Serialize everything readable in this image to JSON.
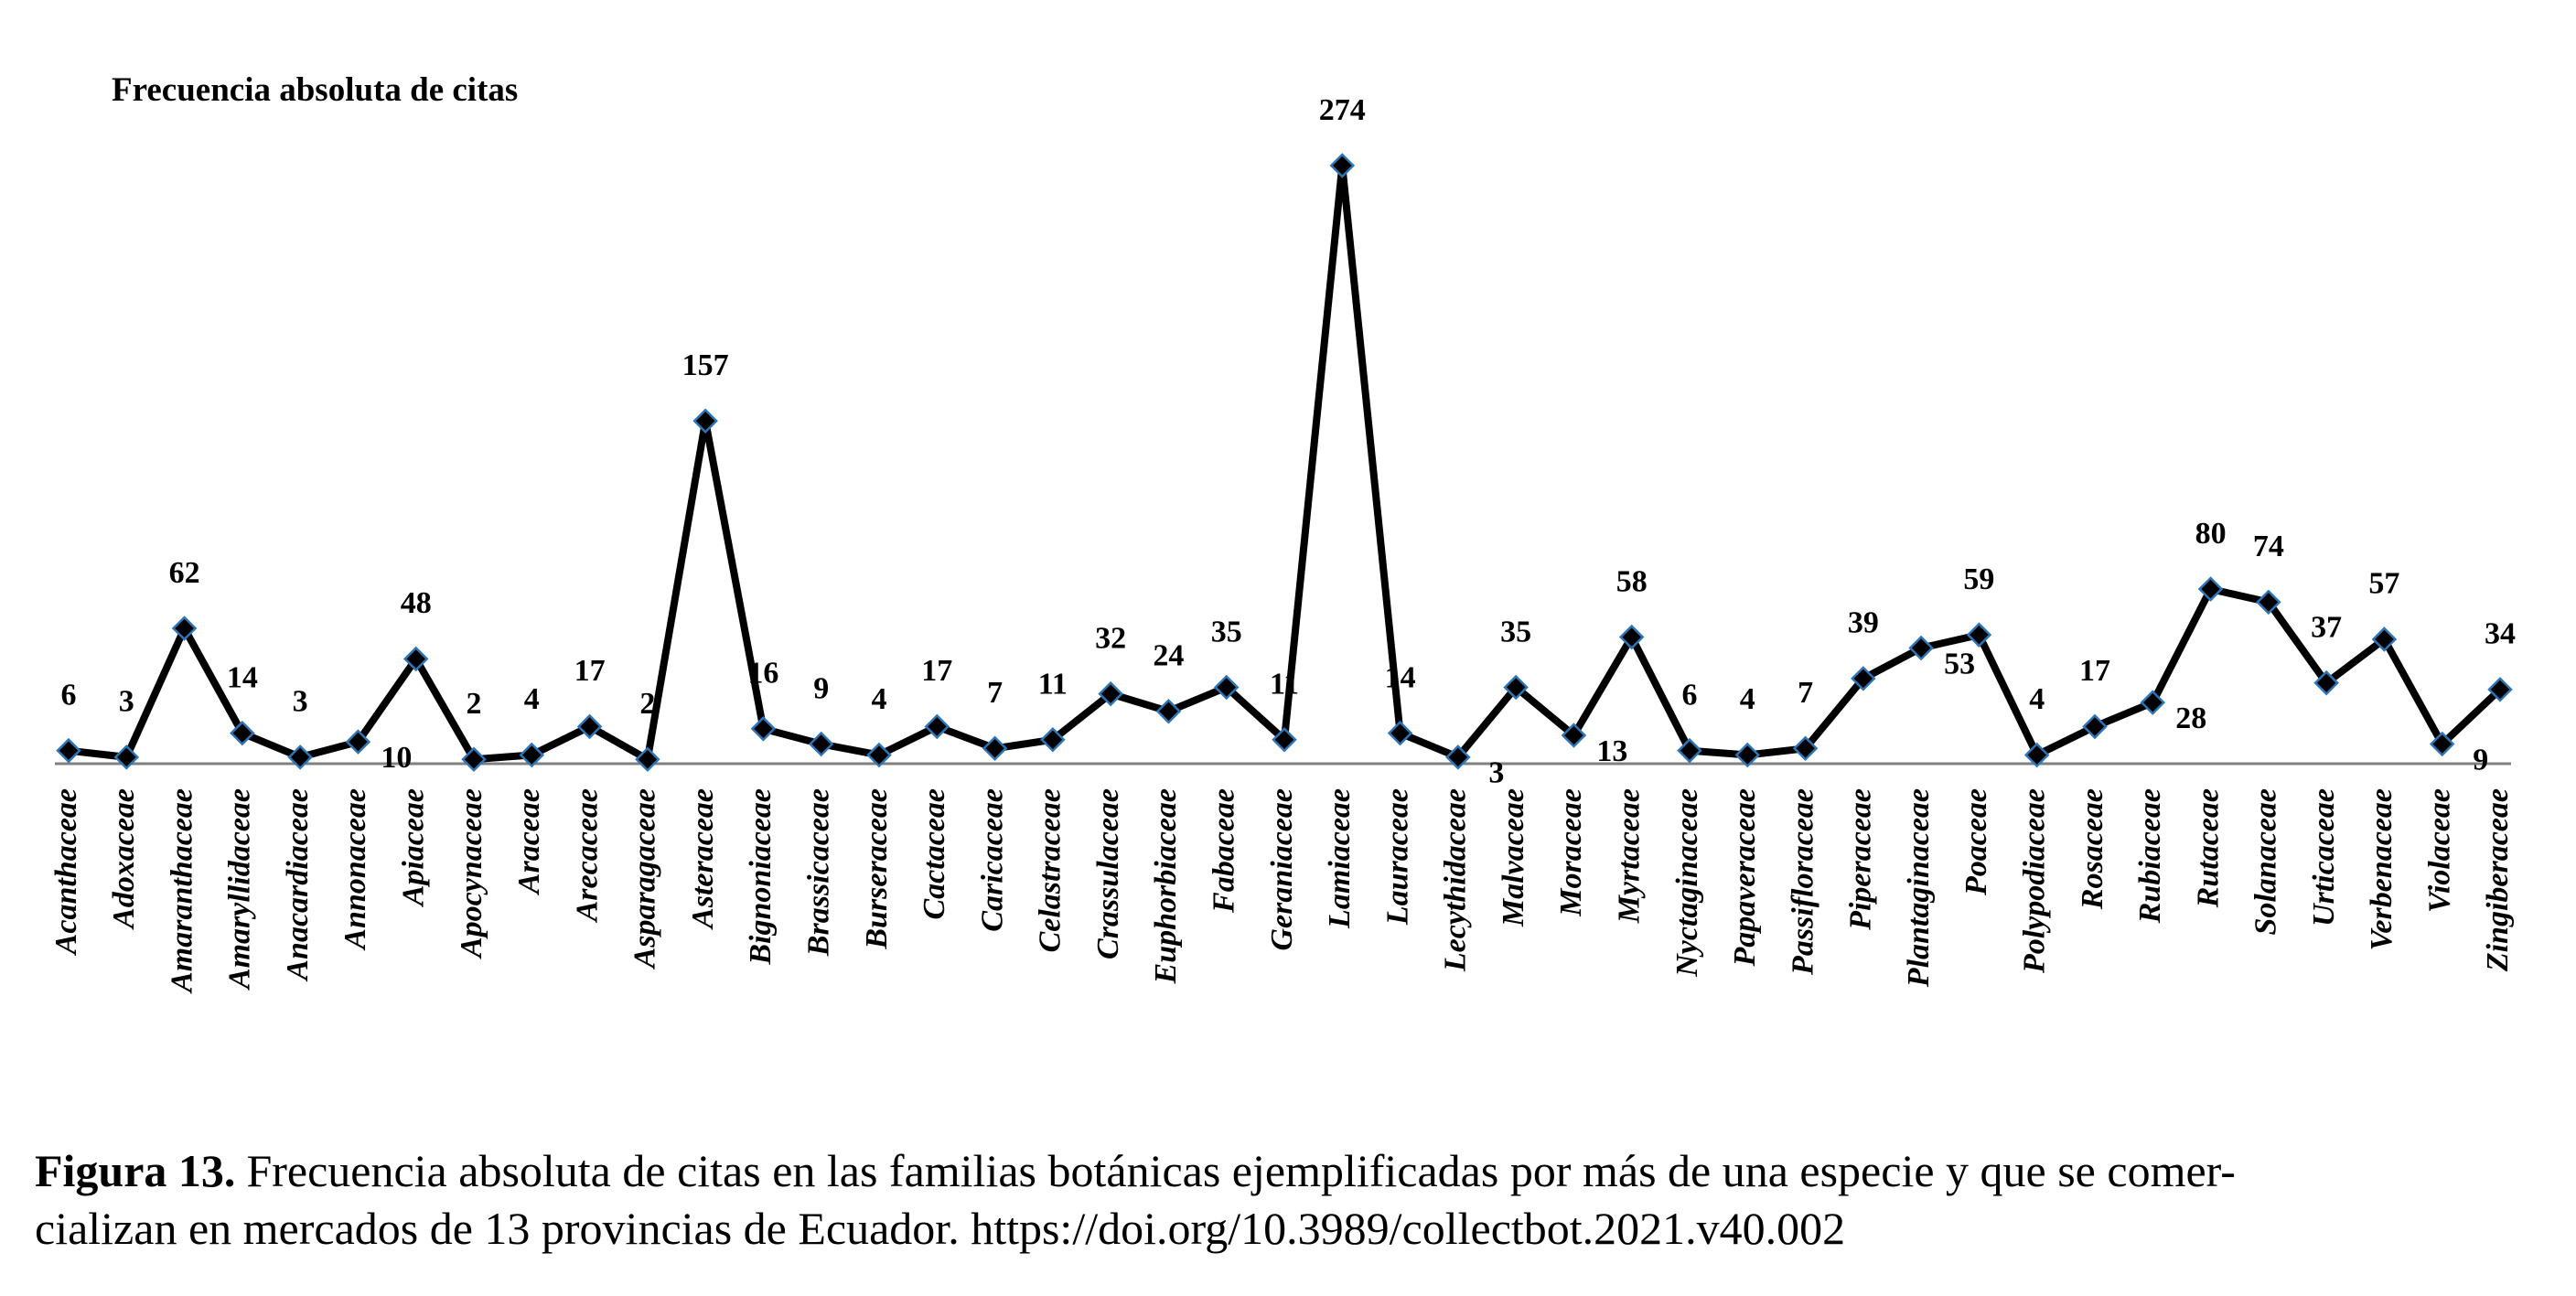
{
  "chart_data": {
    "type": "line",
    "title": "Frecuencia absoluta de citas",
    "categories": [
      "Acanthaceae",
      "Adoxaceae",
      "Amaranthaceae",
      "Amaryllidaceae",
      "Anacardiaceae",
      "Annonaceae",
      "Apiaceae",
      "Apocynaceae",
      "Araceae",
      "Arecaceae",
      "Asparagaceae",
      "Asteraceae",
      "Bignoniaceae",
      "Brassicaceae",
      "Burseraceae",
      "Cactaceae",
      "Caricaceae",
      "Celastraceae",
      "Crassulaceae",
      "Euphorbiaceae",
      "Fabaceae",
      "Geraniaceae",
      "Lamiaceae",
      "Lauraceae",
      "Lecythidaceae",
      "Malvaceae",
      "Moraceae",
      "Myrtaceae",
      "Nyctaginaceae",
      "Papaveraceae",
      "Passifloraceae",
      "Piperaceae",
      "Plantaginaceae",
      "Poaceae",
      "Polypodiaceae",
      "Rosaceae",
      "Rubiaceae",
      "Rutaceae",
      "Solanaceae",
      "Urticaceae",
      "Verbenaceae",
      "Violaceae",
      "Zingiberaceae"
    ],
    "values": [
      6,
      3,
      62,
      14,
      3,
      10,
      48,
      2,
      4,
      17,
      2,
      157,
      16,
      9,
      4,
      17,
      7,
      11,
      32,
      24,
      35,
      11,
      274,
      14,
      3,
      35,
      13,
      58,
      6,
      4,
      7,
      39,
      53,
      59,
      4,
      17,
      28,
      80,
      74,
      37,
      57,
      9,
      34
    ],
    "color": "#000000",
    "marker_edge": "#2e75b6"
  },
  "caption": {
    "label": "Figura 13.",
    "lines": [
      "Frecuencia absoluta de citas en las familias botánicas ejemplificadas por más de una especie y que se comer-",
      "cializan en mercados de 13 provincias de Ecuador. https://doi.org/10.3989/collectbot.2021.v40.002"
    ]
  }
}
